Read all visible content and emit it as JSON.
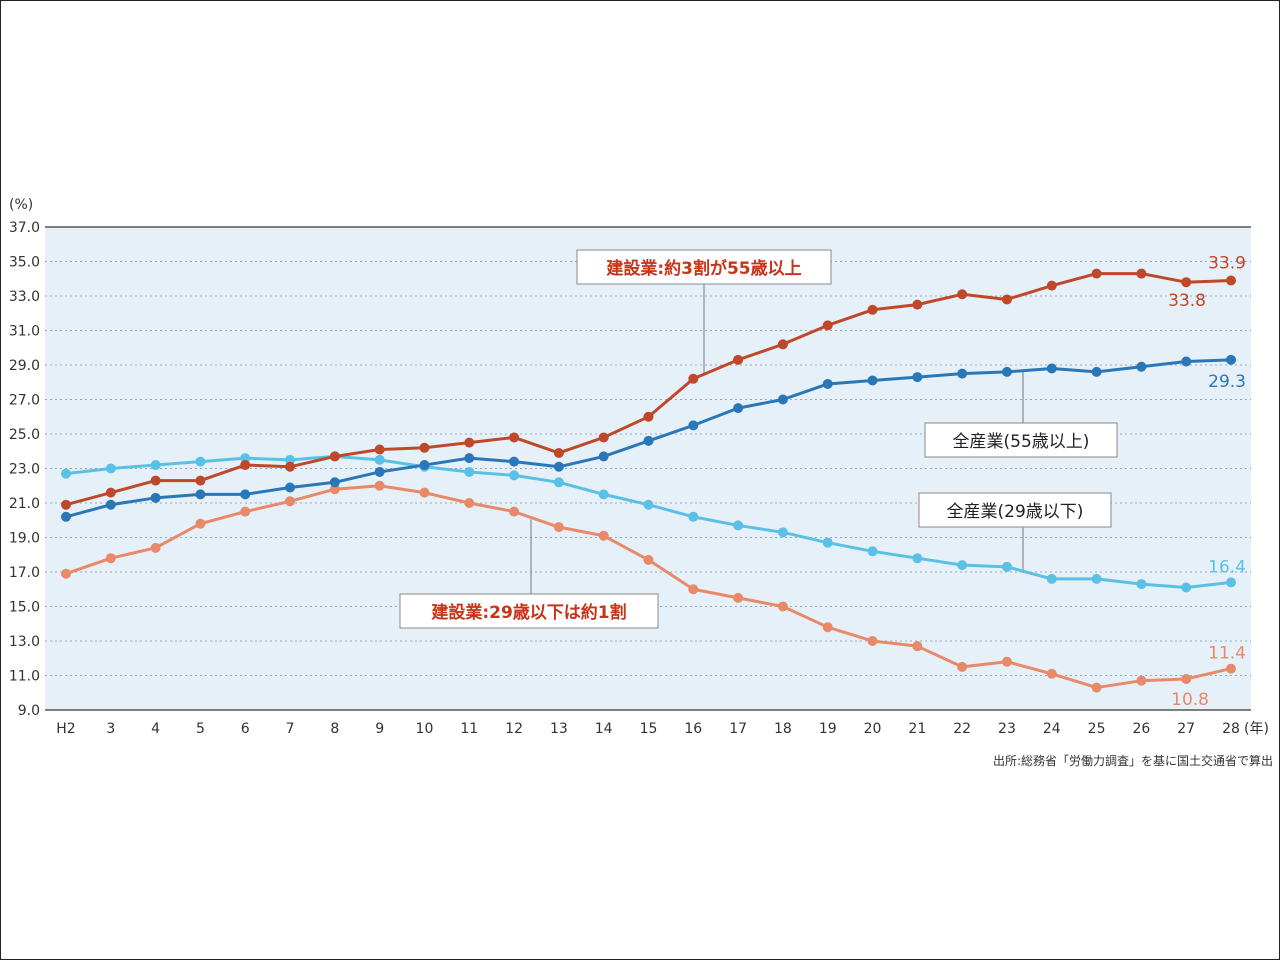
{
  "chart_data": {
    "type": "line",
    "y_unit_label": "(%)",
    "x_unit_label": "(年)",
    "ylim": [
      9.0,
      37.0
    ],
    "y_ticks": [
      "37.0",
      "35.0",
      "33.0",
      "31.0",
      "29.0",
      "27.0",
      "25.0",
      "23.0",
      "21.0",
      "19.0",
      "17.0",
      "15.0",
      "13.0",
      "11.0",
      "9.0"
    ],
    "categories": [
      "H2",
      "3",
      "4",
      "5",
      "6",
      "7",
      "8",
      "9",
      "10",
      "11",
      "12",
      "13",
      "14",
      "15",
      "16",
      "17",
      "18",
      "19",
      "20",
      "21",
      "22",
      "23",
      "24",
      "25",
      "26",
      "27",
      "28"
    ],
    "series": [
      {
        "name": "建設業(55歳以上)",
        "color": "#c0482a",
        "values": [
          20.9,
          21.6,
          22.3,
          22.3,
          23.2,
          23.1,
          23.7,
          24.1,
          24.2,
          24.5,
          24.8,
          23.9,
          24.8,
          26.0,
          28.2,
          29.3,
          30.2,
          31.3,
          32.2,
          32.5,
          33.1,
          32.8,
          33.6,
          34.3,
          34.3,
          33.8,
          33.9
        ]
      },
      {
        "name": "全産業(55歳以上)",
        "color": "#2a77b8",
        "values": [
          20.2,
          20.9,
          21.3,
          21.5,
          21.5,
          21.9,
          22.2,
          22.8,
          23.2,
          23.6,
          23.4,
          23.1,
          23.7,
          24.6,
          25.5,
          26.5,
          27.0,
          27.9,
          28.1,
          28.3,
          28.5,
          28.6,
          28.8,
          28.6,
          28.9,
          29.2,
          29.3
        ]
      },
      {
        "name": "全産業(29歳以下)",
        "color": "#5bc0e6",
        "values": [
          22.7,
          23.0,
          23.2,
          23.4,
          23.6,
          23.5,
          23.7,
          23.5,
          23.1,
          22.8,
          22.6,
          22.2,
          21.5,
          20.9,
          20.2,
          19.7,
          19.3,
          18.7,
          18.2,
          17.8,
          17.4,
          17.3,
          16.6,
          16.6,
          16.3,
          16.1,
          16.4
        ]
      },
      {
        "name": "建設業(29歳以下)",
        "color": "#e8896a",
        "values": [
          16.9,
          17.8,
          18.4,
          19.8,
          20.5,
          21.1,
          21.8,
          22.0,
          21.6,
          21.0,
          20.5,
          19.6,
          19.1,
          17.7,
          16.0,
          15.5,
          15.0,
          13.8,
          13.0,
          12.7,
          11.5,
          11.8,
          11.1,
          10.3,
          10.7,
          10.8,
          11.4
        ]
      }
    ],
    "end_labels": [
      {
        "text": "33.9",
        "series": 0,
        "color": "#c0482a"
      },
      {
        "text": "33.8",
        "series": 0,
        "color": "#c0482a"
      },
      {
        "text": "29.3",
        "series": 1,
        "color": "#2a77b8"
      },
      {
        "text": "16.4",
        "series": 2,
        "color": "#5bc0e6"
      },
      {
        "text": "11.4",
        "series": 3,
        "color": "#e8896a"
      },
      {
        "text": "10.8",
        "series": 3,
        "color": "#e8896a"
      }
    ],
    "annotations": {
      "construction_55": "建設業:約3割が55歳以上",
      "all_55": "全産業(55歳以上)",
      "all_29": "全産業(29歳以下)",
      "construction_29": "建設業:29歳以下は約1割"
    },
    "source": "出所:総務省「労働力調査」を基に国土交通省で算出",
    "plot_background": "#e6f0f8",
    "grid": true
  }
}
